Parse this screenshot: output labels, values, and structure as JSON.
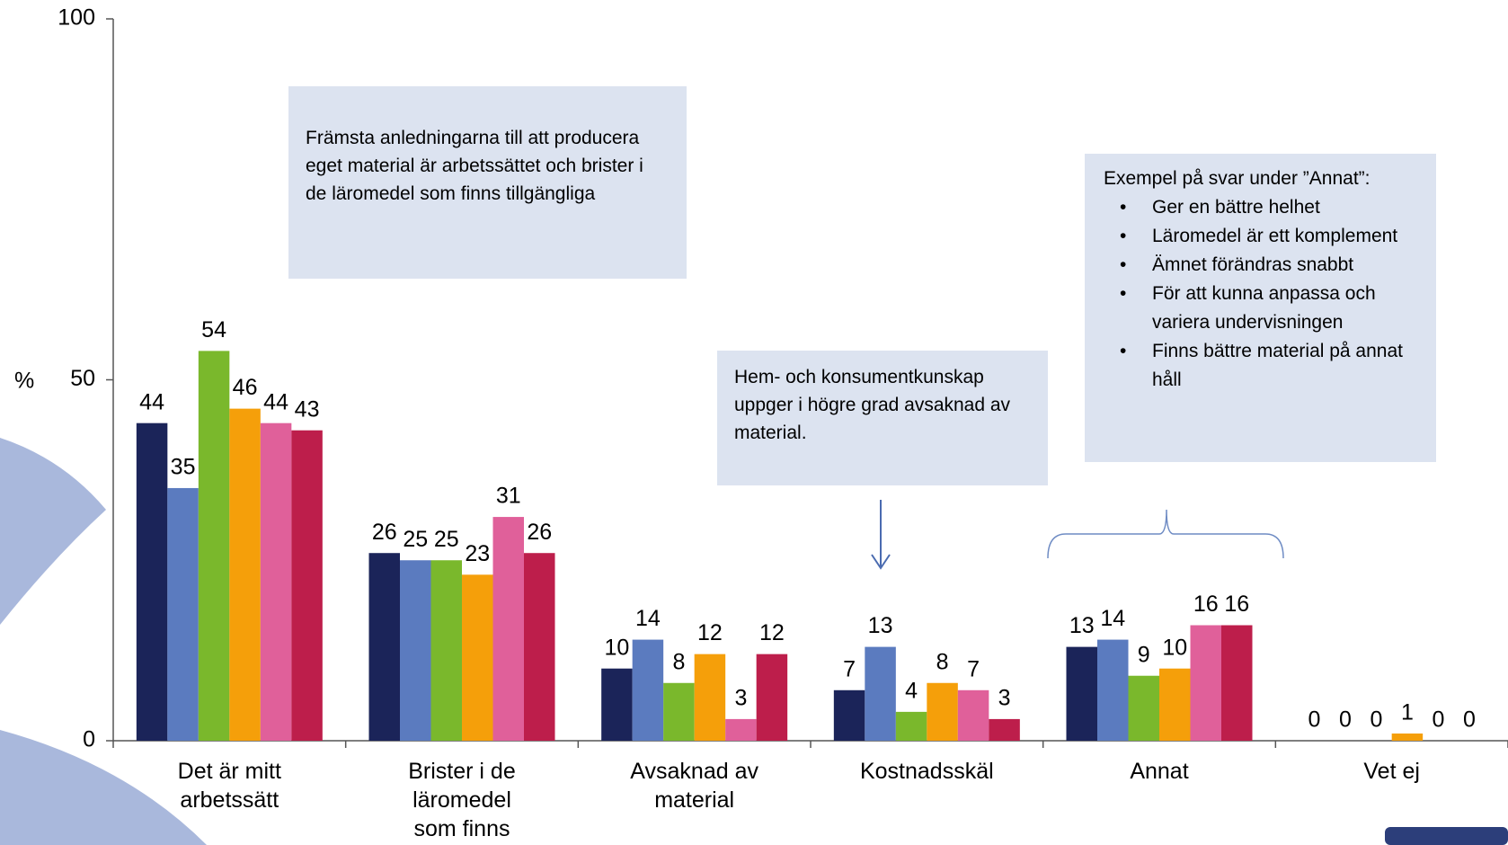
{
  "chart_data": {
    "type": "bar",
    "y_label": "%",
    "categories": [
      "Det är mitt arbetssätt",
      "Brister i de läromedel som finns",
      "Avsaknad av material",
      "Kostnadsskäl",
      "Annat",
      "Vet ej"
    ],
    "series": [
      {
        "color": "#1b2459",
        "values": [
          44,
          26,
          10,
          7,
          13,
          0
        ]
      },
      {
        "color": "#5b7bbf",
        "values": [
          35,
          25,
          14,
          13,
          14,
          0
        ]
      },
      {
        "color": "#7ab82c",
        "values": [
          54,
          25,
          8,
          4,
          9,
          0
        ]
      },
      {
        "color": "#f59f0a",
        "values": [
          46,
          23,
          12,
          8,
          10,
          1
        ]
      },
      {
        "color": "#e0609a",
        "values": [
          44,
          31,
          3,
          7,
          16,
          0
        ]
      },
      {
        "color": "#bd1e4b",
        "values": [
          43,
          26,
          12,
          3,
          16,
          0
        ]
      }
    ],
    "ylim": [
      0,
      100
    ],
    "yticks": [
      0,
      50,
      100
    ],
    "grid": false,
    "annotations": [
      {
        "text": "Främsta anledningarna till att producera eget material är arbetssättet och brister i de läromedel som finns tillgängliga"
      },
      {
        "text": "Hem- och konsumentkunskap uppger i högre grad avsaknad av material."
      },
      {
        "text": "Exempel på svar under ”Annat”:",
        "items": [
          "Ger en bättre helhet",
          "Läromedel är ett komplement",
          "Ämnet förändras snabbt",
          "För att kunna anpassa och variera undervisningen",
          "Finns bättre material på annat håll"
        ]
      }
    ]
  }
}
